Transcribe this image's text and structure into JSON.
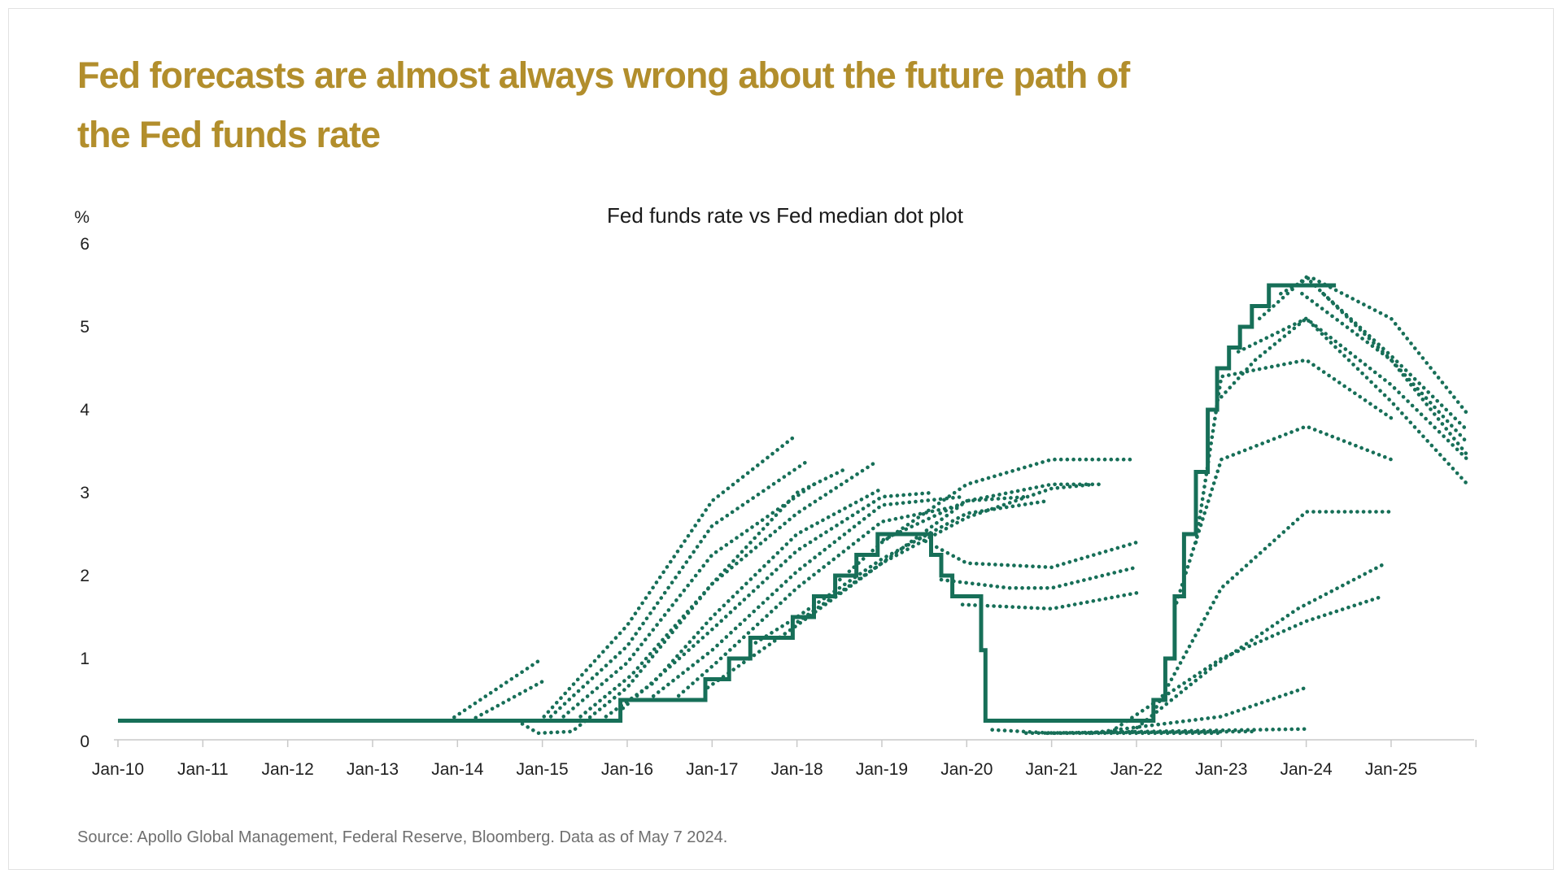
{
  "header": {
    "title_lines": [
      "Fed forecasts are almost always wrong about the future path of",
      "the Fed funds rate"
    ],
    "title_color": "#b28e2c"
  },
  "footer": {
    "source": "Source: Apollo Global Management, Federal Reserve, Bloomberg. Data as of May 7 2024."
  },
  "chart_data": {
    "type": "line",
    "title": "Fed funds rate vs Fed median dot plot",
    "y_unit": "%",
    "ylim": [
      0,
      6
    ],
    "y_ticks": [
      0,
      1,
      2,
      3,
      4,
      5,
      6
    ],
    "x_ticks": [
      {
        "year": 2010,
        "label": "Jan-10"
      },
      {
        "year": 2011,
        "label": "Jan-11"
      },
      {
        "year": 2012,
        "label": "Jan-12"
      },
      {
        "year": 2013,
        "label": "Jan-13"
      },
      {
        "year": 2014,
        "label": "Jan-14"
      },
      {
        "year": 2015,
        "label": "Jan-15"
      },
      {
        "year": 2016,
        "label": "Jan-16"
      },
      {
        "year": 2017,
        "label": "Jan-17"
      },
      {
        "year": 2018,
        "label": "Jan-18"
      },
      {
        "year": 2019,
        "label": "Jan-19"
      },
      {
        "year": 2020,
        "label": "Jan-20"
      },
      {
        "year": 2021,
        "label": "Jan-21"
      },
      {
        "year": 2022,
        "label": "Jan-22"
      },
      {
        "year": 2023,
        "label": "Jan-23"
      },
      {
        "year": 2024,
        "label": "Jan-24"
      },
      {
        "year": 2025,
        "label": "Jan-25"
      }
    ],
    "extra_tick_years": [
      2026
    ],
    "x_range": [
      2009.95,
      2026.0
    ],
    "grid": false,
    "legend": "none",
    "colors": {
      "line": "#176f58",
      "axis": "#c9c9c9",
      "tick_label": "#1f1f1f"
    },
    "solid_series": {
      "name": "Fed funds rate (target upper bound)",
      "points": [
        [
          2010.0,
          0.25
        ],
        [
          2015.92,
          0.25
        ],
        [
          2015.92,
          0.5
        ],
        [
          2016.92,
          0.5
        ],
        [
          2016.92,
          0.75
        ],
        [
          2017.2,
          0.75
        ],
        [
          2017.2,
          1.0
        ],
        [
          2017.45,
          1.0
        ],
        [
          2017.45,
          1.25
        ],
        [
          2017.95,
          1.25
        ],
        [
          2017.95,
          1.5
        ],
        [
          2018.2,
          1.5
        ],
        [
          2018.2,
          1.75
        ],
        [
          2018.45,
          1.75
        ],
        [
          2018.45,
          2.0
        ],
        [
          2018.7,
          2.0
        ],
        [
          2018.7,
          2.25
        ],
        [
          2018.95,
          2.25
        ],
        [
          2018.95,
          2.5
        ],
        [
          2019.58,
          2.5
        ],
        [
          2019.58,
          2.25
        ],
        [
          2019.7,
          2.25
        ],
        [
          2019.7,
          2.0
        ],
        [
          2019.83,
          2.0
        ],
        [
          2019.83,
          1.75
        ],
        [
          2020.17,
          1.75
        ],
        [
          2020.17,
          1.1
        ],
        [
          2020.22,
          1.1
        ],
        [
          2020.22,
          0.25
        ],
        [
          2022.2,
          0.25
        ],
        [
          2022.2,
          0.5
        ],
        [
          2022.34,
          0.5
        ],
        [
          2022.34,
          1.0
        ],
        [
          2022.45,
          1.0
        ],
        [
          2022.45,
          1.75
        ],
        [
          2022.56,
          1.75
        ],
        [
          2022.56,
          2.5
        ],
        [
          2022.7,
          2.5
        ],
        [
          2022.7,
          3.25
        ],
        [
          2022.84,
          3.25
        ],
        [
          2022.84,
          4.0
        ],
        [
          2022.95,
          4.0
        ],
        [
          2022.95,
          4.5
        ],
        [
          2023.09,
          4.5
        ],
        [
          2023.09,
          4.75
        ],
        [
          2023.22,
          4.75
        ],
        [
          2023.22,
          5.0
        ],
        [
          2023.36,
          5.0
        ],
        [
          2023.36,
          5.25
        ],
        [
          2023.56,
          5.25
        ],
        [
          2023.56,
          5.5
        ],
        [
          2024.35,
          5.5
        ]
      ]
    },
    "dotted_series": [
      {
        "name": "projection-2012",
        "points": [
          [
            2013.9,
            0.25
          ],
          [
            2015.0,
            1.0
          ]
        ]
      },
      {
        "name": "projection-2013",
        "points": [
          [
            2014.15,
            0.25
          ],
          [
            2015.05,
            0.75
          ]
        ]
      },
      {
        "name": "projection-2015-dip",
        "points": [
          [
            2014.7,
            0.25
          ],
          [
            2014.95,
            0.1
          ],
          [
            2015.35,
            0.12
          ],
          [
            2016.0,
            0.65
          ],
          [
            2017.0,
            1.9
          ],
          [
            2018.0,
            3.0
          ],
          [
            2018.6,
            3.3
          ]
        ]
      },
      {
        "name": "projection-liftoff-a",
        "points": [
          [
            2015.02,
            0.3
          ],
          [
            2016.0,
            1.4
          ],
          [
            2017.0,
            2.9
          ],
          [
            2018.0,
            3.7
          ]
        ]
      },
      {
        "name": "projection-liftoff-b",
        "points": [
          [
            2015.1,
            0.3
          ],
          [
            2016.0,
            1.15
          ],
          [
            2017.0,
            2.6
          ],
          [
            2018.15,
            3.4
          ]
        ]
      },
      {
        "name": "projection-liftoff-c",
        "points": [
          [
            2015.25,
            0.3
          ],
          [
            2016.0,
            0.95
          ],
          [
            2017.0,
            2.25
          ],
          [
            2018.2,
            3.1
          ]
        ]
      },
      {
        "name": "projection-liftoff-d",
        "points": [
          [
            2015.45,
            0.3
          ],
          [
            2016.05,
            0.8
          ],
          [
            2017.0,
            1.9
          ],
          [
            2018.0,
            2.75
          ],
          [
            2018.9,
            3.35
          ]
        ]
      },
      {
        "name": "projection-2015-dec",
        "points": [
          [
            2015.75,
            0.3
          ],
          [
            2016.3,
            0.7
          ],
          [
            2017.0,
            1.5
          ],
          [
            2018.0,
            2.5
          ],
          [
            2019.0,
            3.05
          ]
        ]
      },
      {
        "name": "projection-2016-mar",
        "points": [
          [
            2015.95,
            0.4
          ],
          [
            2017.0,
            1.35
          ],
          [
            2018.0,
            2.3
          ],
          [
            2019.0,
            2.95
          ],
          [
            2019.6,
            3.0
          ]
        ]
      },
      {
        "name": "projection-2016-jun",
        "points": [
          [
            2016.25,
            0.5
          ],
          [
            2017.0,
            1.1
          ],
          [
            2018.0,
            2.05
          ],
          [
            2019.0,
            2.85
          ],
          [
            2019.95,
            2.95
          ]
        ]
      },
      {
        "name": "projection-2016-sep",
        "points": [
          [
            2016.55,
            0.5
          ],
          [
            2017.05,
            0.95
          ],
          [
            2018.0,
            1.85
          ],
          [
            2019.0,
            2.65
          ],
          [
            2019.95,
            2.85
          ]
        ]
      },
      {
        "name": "projection-2016-dec",
        "points": [
          [
            2016.95,
            0.65
          ],
          [
            2018.0,
            1.4
          ],
          [
            2019.0,
            2.15
          ],
          [
            2020.0,
            2.9
          ],
          [
            2020.7,
            2.95
          ]
        ]
      },
      {
        "name": "projection-2017-jun",
        "points": [
          [
            2017.45,
            1.15
          ],
          [
            2018.0,
            1.5
          ],
          [
            2019.0,
            2.2
          ],
          [
            2020.0,
            2.75
          ],
          [
            2020.95,
            2.9
          ]
        ]
      },
      {
        "name": "projection-2017-dec",
        "points": [
          [
            2017.95,
            1.4
          ],
          [
            2019.0,
            2.15
          ],
          [
            2020.0,
            2.7
          ],
          [
            2021.0,
            3.05
          ],
          [
            2021.5,
            3.1
          ]
        ]
      },
      {
        "name": "projection-2018-jun",
        "points": [
          [
            2018.45,
            1.9
          ],
          [
            2019.0,
            2.4
          ],
          [
            2020.0,
            3.1
          ],
          [
            2021.0,
            3.4
          ],
          [
            2021.95,
            3.4
          ]
        ]
      },
      {
        "name": "projection-2018-dec",
        "points": [
          [
            2018.95,
            2.4
          ],
          [
            2020.0,
            2.9
          ],
          [
            2021.0,
            3.1
          ],
          [
            2021.6,
            3.1
          ]
        ]
      },
      {
        "name": "projection-2019-jun",
        "points": [
          [
            2019.45,
            2.45
          ],
          [
            2020.0,
            2.15
          ],
          [
            2021.0,
            2.1
          ],
          [
            2022.0,
            2.4
          ]
        ]
      },
      {
        "name": "projection-2019-sep",
        "points": [
          [
            2019.7,
            1.95
          ],
          [
            2020.5,
            1.85
          ],
          [
            2021.0,
            1.85
          ],
          [
            2022.0,
            2.1
          ]
        ]
      },
      {
        "name": "projection-2019-dec",
        "points": [
          [
            2019.95,
            1.65
          ],
          [
            2021.0,
            1.6
          ],
          [
            2022.05,
            1.8
          ]
        ]
      },
      {
        "name": "projection-2020-jun",
        "points": [
          [
            2020.3,
            0.14
          ],
          [
            2021.0,
            0.1
          ],
          [
            2023.0,
            0.1
          ]
        ]
      },
      {
        "name": "projection-2020-sep",
        "points": [
          [
            2020.7,
            0.1
          ],
          [
            2023.4,
            0.12
          ]
        ]
      },
      {
        "name": "projection-2020-dec",
        "points": [
          [
            2020.95,
            0.1
          ],
          [
            2024.0,
            0.15
          ]
        ]
      },
      {
        "name": "projection-2021-jun",
        "points": [
          [
            2021.45,
            0.1
          ],
          [
            2023.0,
            0.3
          ],
          [
            2024.0,
            0.65
          ]
        ]
      },
      {
        "name": "projection-2021-sep",
        "points": [
          [
            2021.7,
            0.12
          ],
          [
            2023.0,
            1.0
          ],
          [
            2024.0,
            1.45
          ],
          [
            2024.9,
            1.75
          ]
        ]
      },
      {
        "name": "projection-2021-dec",
        "points": [
          [
            2021.95,
            0.12
          ],
          [
            2022.9,
            0.9
          ],
          [
            2023.9,
            1.6
          ],
          [
            2024.9,
            2.13
          ]
        ]
      },
      {
        "name": "projection-2022-mar",
        "points": [
          [
            2022.2,
            0.35
          ],
          [
            2023.0,
            1.85
          ],
          [
            2024.0,
            2.77
          ],
          [
            2025.0,
            2.77
          ]
        ]
      },
      {
        "name": "projection-2022-jun",
        "points": [
          [
            2022.45,
            1.6
          ],
          [
            2023.0,
            3.4
          ],
          [
            2024.0,
            3.8
          ],
          [
            2025.0,
            3.4
          ]
        ]
      },
      {
        "name": "projection-2022-sep",
        "points": [
          [
            2022.7,
            2.4
          ],
          [
            2023.0,
            4.4
          ],
          [
            2024.0,
            4.6
          ],
          [
            2025.0,
            3.9
          ]
        ]
      },
      {
        "name": "projection-2022-dec",
        "points": [
          [
            2022.95,
            4.1
          ],
          [
            2023.4,
            4.6
          ],
          [
            2024.0,
            5.1
          ],
          [
            2025.0,
            4.1
          ],
          [
            2025.9,
            3.1
          ]
        ]
      },
      {
        "name": "projection-2023-mar",
        "points": [
          [
            2023.2,
            4.7
          ],
          [
            2024.0,
            5.1
          ],
          [
            2025.0,
            4.3
          ],
          [
            2025.9,
            3.4
          ]
        ]
      },
      {
        "name": "projection-2023-jun",
        "points": [
          [
            2023.45,
            5.1
          ],
          [
            2024.0,
            5.6
          ],
          [
            2025.0,
            4.6
          ],
          [
            2025.9,
            3.45
          ]
        ]
      },
      {
        "name": "projection-2023-sep",
        "points": [
          [
            2023.7,
            5.4
          ],
          [
            2024.05,
            5.6
          ],
          [
            2025.0,
            5.1
          ],
          [
            2025.9,
            3.95
          ]
        ]
      },
      {
        "name": "projection-2023-dec",
        "points": [
          [
            2023.95,
            5.4
          ],
          [
            2025.0,
            4.6
          ],
          [
            2025.9,
            3.6
          ]
        ]
      },
      {
        "name": "projection-2024-mar",
        "points": [
          [
            2024.2,
            5.4
          ],
          [
            2025.0,
            4.65
          ],
          [
            2025.9,
            3.75
          ]
        ]
      }
    ]
  }
}
